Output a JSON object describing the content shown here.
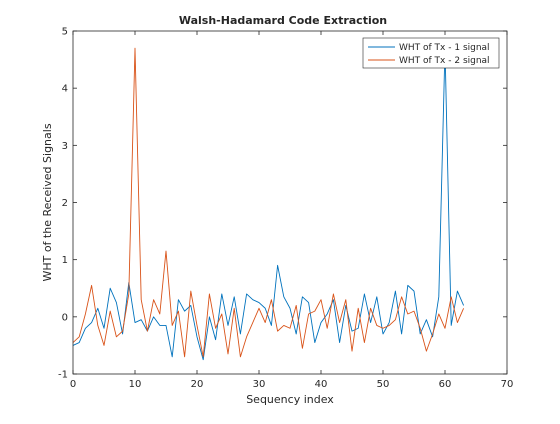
{
  "chart_data": {
    "type": "line",
    "title": "Walsh-Hadamard Code Extraction",
    "xlabel": "Sequency index",
    "ylabel": "WHT of the Received Signals",
    "xlim": [
      0,
      70
    ],
    "ylim": [
      -1,
      5
    ],
    "xticks": [
      "0",
      "10",
      "20",
      "30",
      "40",
      "50",
      "60",
      "70"
    ],
    "yticks": [
      "-1",
      "0",
      "1",
      "2",
      "3",
      "4",
      "5"
    ],
    "grid": false,
    "legend_position": "top-right",
    "x": [
      0,
      1,
      2,
      3,
      4,
      5,
      6,
      7,
      8,
      9,
      10,
      11,
      12,
      13,
      14,
      15,
      16,
      17,
      18,
      19,
      20,
      21,
      22,
      23,
      24,
      25,
      26,
      27,
      28,
      29,
      30,
      31,
      32,
      33,
      34,
      35,
      36,
      37,
      38,
      39,
      40,
      41,
      42,
      43,
      44,
      45,
      46,
      47,
      48,
      49,
      50,
      51,
      52,
      53,
      54,
      55,
      56,
      57,
      58,
      59,
      60,
      61,
      62,
      63
    ],
    "series": [
      {
        "name": "WHT of Tx - 1 signal",
        "color": "#0072bd",
        "values": [
          -0.5,
          -0.45,
          -0.2,
          -0.1,
          0.15,
          -0.2,
          0.5,
          0.25,
          -0.3,
          0.6,
          -0.1,
          -0.05,
          -0.25,
          0.0,
          -0.15,
          -0.15,
          -0.7,
          0.3,
          0.1,
          0.2,
          -0.35,
          -0.75,
          0.0,
          -0.4,
          0.4,
          -0.15,
          0.35,
          -0.3,
          0.4,
          0.3,
          0.25,
          0.15,
          -0.15,
          0.9,
          0.35,
          0.15,
          -0.3,
          0.35,
          0.25,
          -0.45,
          -0.1,
          0.05,
          0.3,
          -0.45,
          0.2,
          -0.25,
          -0.2,
          0.4,
          -0.1,
          0.35,
          -0.3,
          -0.1,
          0.45,
          -0.3,
          0.55,
          0.45,
          -0.3,
          -0.05,
          -0.35,
          0.35,
          4.7,
          -0.15,
          0.45,
          0.2
        ]
      },
      {
        "name": "WHT of Tx - 2 signal",
        "color": "#d95319",
        "values": [
          -0.45,
          -0.35,
          0.05,
          0.55,
          -0.15,
          -0.5,
          0.1,
          -0.35,
          -0.25,
          0.4,
          4.7,
          0.3,
          -0.25,
          0.3,
          0.05,
          1.15,
          -0.15,
          0.1,
          -0.7,
          0.45,
          -0.15,
          -0.7,
          0.4,
          -0.2,
          0.05,
          -0.65,
          0.15,
          -0.7,
          -0.35,
          -0.1,
          0.15,
          -0.1,
          0.3,
          -0.25,
          -0.15,
          -0.2,
          0.2,
          -0.55,
          0.05,
          0.1,
          0.3,
          -0.2,
          0.4,
          -0.1,
          0.3,
          -0.6,
          0.15,
          -0.45,
          0.15,
          -0.15,
          -0.2,
          -0.15,
          -0.05,
          0.35,
          0.05,
          0.1,
          -0.2,
          -0.6,
          -0.3,
          0.05,
          -0.2,
          0.35,
          -0.1,
          0.15
        ]
      }
    ]
  }
}
